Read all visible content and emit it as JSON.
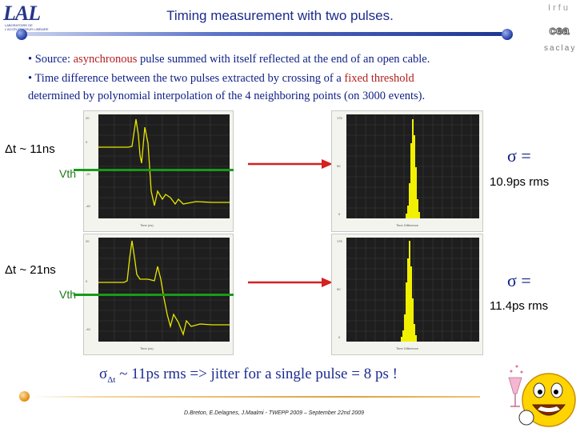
{
  "header": {
    "title": "Timing measurement with two pulses.",
    "lab_logo_text": "LAL",
    "lab_logo_sub": "LABORATOIRE DE L'ACCÉLÉRATEUR LINÉAIRE",
    "org_irfu": "Irfu",
    "org_cea": "cea",
    "org_saclay": "saclay"
  },
  "bullets": {
    "b1_prefix": "• Source: ",
    "b1_highlight": "asynchronous",
    "b1_suffix": " pulse summed with itself reflected at the end of an open cable.",
    "b2_prefix": "• Time difference between the two pulses extracted by crossing of a ",
    "b2_highlight": "fixed threshold",
    "b2_line2": "determined by polynomial interpolation of the 4 neighboring points (on 3000 events)."
  },
  "rows": [
    {
      "dt_label": "Δt ~ 11ns",
      "vth_label": "Vth",
      "sigma_label": "σ =",
      "rms_label": "10.9ps rms"
    },
    {
      "dt_label": "Δt ~ 21ns",
      "vth_label": "Vth",
      "sigma_label": "σ =",
      "rms_label": "11.4ps rms"
    }
  ],
  "conclusion": {
    "sigma": "σ",
    "sub": "Δt",
    "text": " ~ 11ps rms => jitter for a single pulse = 8 ps !"
  },
  "footer": "D.Breton, E.Delagnes, J.Maalmi - TWEPP 2009 – September 22nd 2009",
  "colors": {
    "title": "#1a2b8c",
    "highlight_red": "#b4201f",
    "waveform": "#e6e600",
    "threshold_line": "#1a9a1a",
    "arrow": "#d42020",
    "histogram": "#f0f000"
  }
}
